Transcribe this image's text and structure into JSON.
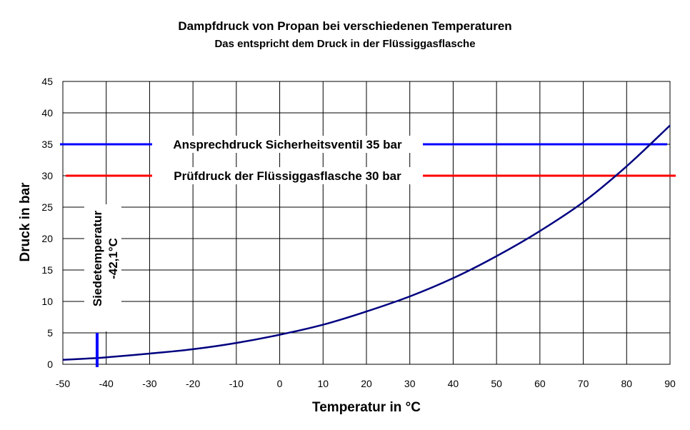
{
  "chart_data": {
    "type": "line",
    "title": "Dampfdruck von Propan bei verschiedenen Temperaturen",
    "subtitle": "Das entspricht dem Druck in der Flüssiggasflasche",
    "xlabel": "Temperatur in °C",
    "ylabel": "Druck in bar",
    "xlim": [
      -50,
      90
    ],
    "ylim": [
      0,
      45
    ],
    "x_ticks": [
      -50,
      -40,
      -30,
      -20,
      -10,
      0,
      10,
      20,
      30,
      40,
      50,
      60,
      70,
      80,
      90
    ],
    "y_ticks": [
      0,
      5,
      10,
      15,
      20,
      25,
      30,
      35,
      40,
      45
    ],
    "grid": true,
    "legend": "none",
    "series": [
      {
        "color": "#000080",
        "x": [
          -50,
          -42,
          -40,
          -30,
          -20,
          -10,
          0,
          10,
          20,
          30,
          40,
          50,
          60,
          70,
          80,
          90
        ],
        "y": [
          0.7,
          1.0,
          1.1,
          1.7,
          2.4,
          3.4,
          4.7,
          6.3,
          8.4,
          10.8,
          13.7,
          17.2,
          21.2,
          25.8,
          31.5,
          38.0
        ]
      }
    ],
    "reference_lines": [
      {
        "label": "Ansprechdruck Sicherheitsventil 35 bar",
        "y": 35,
        "color": "#0000ff"
      },
      {
        "label": "Prüfdruck der Flüssiggasflasche 30 bar",
        "y": 30,
        "color": "#ff0000"
      }
    ],
    "annotations": [
      {
        "line1": "Siedetemperatur",
        "line2": "-42,1°C",
        "x": -42.1,
        "color": "#0000ff"
      }
    ]
  }
}
